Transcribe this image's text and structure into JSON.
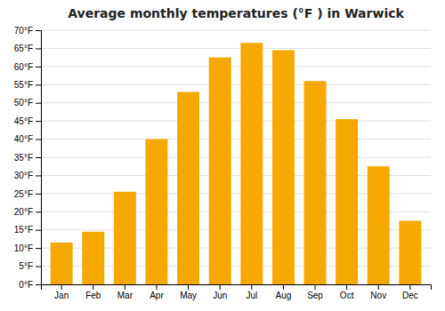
{
  "chart_data": {
    "type": "bar",
    "title": "Average monthly temperatures (°F ) in Warwick",
    "categories": [
      "Jan",
      "Feb",
      "Mar",
      "Apr",
      "May",
      "Jun",
      "Jul",
      "Aug",
      "Sep",
      "Oct",
      "Nov",
      "Dec"
    ],
    "values": [
      11.5,
      14.5,
      25.5,
      40.0,
      53.0,
      62.5,
      66.5,
      64.5,
      56.0,
      45.5,
      32.5,
      17.5
    ],
    "color": "#F5A800",
    "ylim": [
      0,
      70
    ],
    "yticks": [
      {
        "value": 0,
        "label": "0°F"
      },
      {
        "value": 5,
        "label": "5°F"
      },
      {
        "value": 10,
        "label": "10°F"
      },
      {
        "value": 15,
        "label": "15°F"
      },
      {
        "value": 20,
        "label": "20°F"
      },
      {
        "value": 25,
        "label": "25°F"
      },
      {
        "value": 30,
        "label": "30°F"
      },
      {
        "value": 35,
        "label": "35°F"
      },
      {
        "value": 40,
        "label": "40°F"
      },
      {
        "value": 45,
        "label": "45°F"
      },
      {
        "value": 50,
        "label": "50°F"
      },
      {
        "value": 55,
        "label": "55°F"
      },
      {
        "value": 60,
        "label": "60°F"
      },
      {
        "value": 65,
        "label": "65°F"
      },
      {
        "value": 70,
        "label": "70°F"
      }
    ],
    "grid": true
  }
}
